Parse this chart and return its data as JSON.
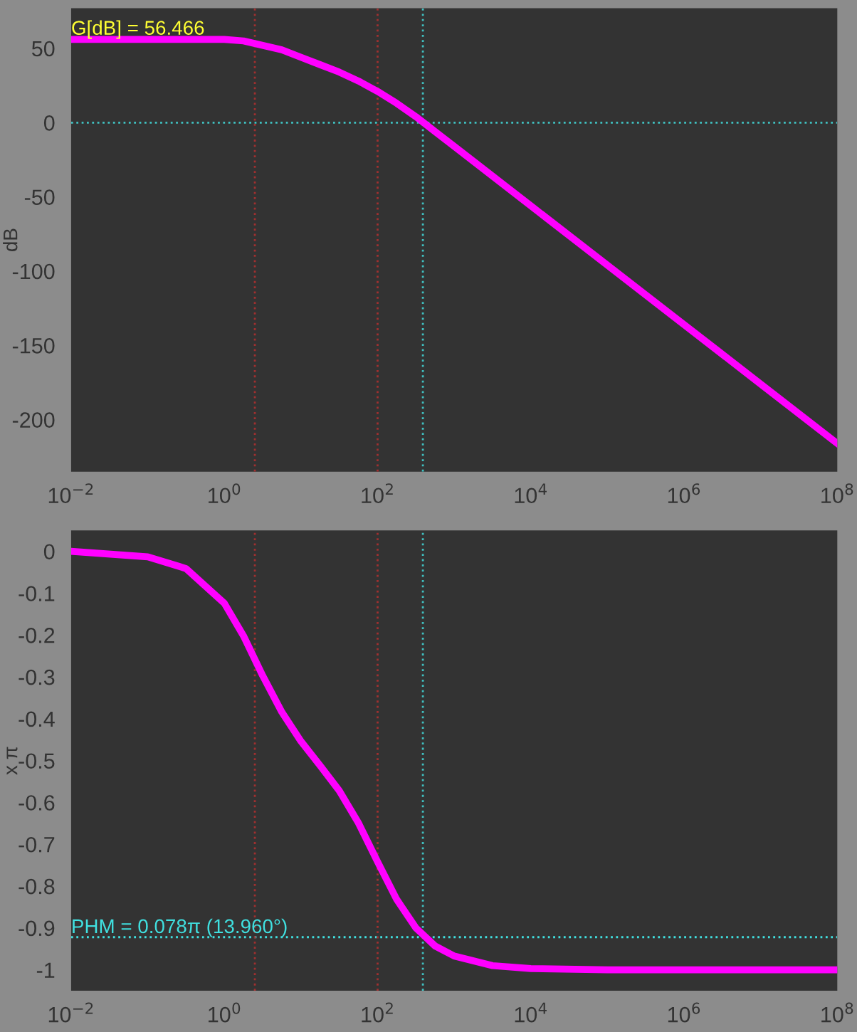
{
  "chart_data": [
    {
      "type": "line",
      "ylabel": "dB",
      "log": "x",
      "grid": false,
      "line_style": "solid",
      "marker": "none",
      "x": [
        0.01,
        0.1,
        0.316,
        1,
        1.778,
        3.162,
        5.623,
        10,
        17.78,
        31.62,
        56.23,
        100,
        177.8,
        316.2,
        562.3,
        1000,
        3162,
        10000,
        100000,
        1000000,
        10000000,
        100000000
      ],
      "series": [
        {
          "color": "#ff00ff",
          "values": [
            56,
            56,
            56,
            56,
            55,
            52,
            49,
            44,
            39,
            34,
            28,
            21,
            13,
            4,
            -6,
            -16,
            -36,
            -56,
            -96,
            -136,
            -176,
            -216
          ]
        }
      ],
      "xlim": [
        0.01,
        100000000
      ],
      "xticks": [
        {
          "value": 0.01,
          "label": "10$^{−2}$"
        },
        {
          "value": 1,
          "label": "10$^{0}$"
        },
        {
          "value": 100,
          "label": "10$^{2}$"
        },
        {
          "value": 10000,
          "label": "10$^{4}$"
        },
        {
          "value": 1000000,
          "label": "10$^{6}$"
        },
        {
          "value": 100000000,
          "label": "10$^{8}$"
        }
      ],
      "ylim": [
        -235,
        77
      ],
      "yticks": [
        50,
        0,
        -50,
        -100,
        -150,
        -200
      ],
      "ref_lines": [
        {
          "axis": "y",
          "value": 0,
          "color": "#40c0c0",
          "line_style": "dotted"
        },
        {
          "axis": "x",
          "value": 2.5,
          "color": "#a03030",
          "line_style": "dotted"
        },
        {
          "axis": "x",
          "value": 100,
          "color": "#a03030",
          "line_style": "dotted"
        },
        {
          "axis": "x",
          "value": 390,
          "color": "#40c0c0",
          "line_style": "dotted"
        }
      ],
      "annotations": [
        {
          "text": "G[dB] = 56.466",
          "x": 0.01,
          "y": 56.466
        }
      ]
    },
    {
      "type": "line",
      "ylabel": "x π",
      "log": "x",
      "grid": false,
      "line_style": "solid",
      "marker": "none",
      "x": [
        0.01,
        0.1,
        0.316,
        1,
        1.778,
        3.162,
        5.623,
        10,
        17.78,
        31.62,
        56.23,
        100,
        177.8,
        316.2,
        562.3,
        1000,
        3162,
        10000,
        100000,
        1000000,
        10000000,
        100000000
      ],
      "series": [
        {
          "color": "#ff00ff",
          "values": [
            0.0,
            -0.013,
            -0.041,
            -0.124,
            -0.202,
            -0.297,
            -0.384,
            -0.454,
            -0.512,
            -0.572,
            -0.649,
            -0.742,
            -0.832,
            -0.9,
            -0.943,
            -0.967,
            -0.99,
            -0.997,
            -1.0,
            -1.0,
            -1.0,
            -1.0
          ]
        }
      ],
      "xlim": [
        0.01,
        100000000
      ],
      "xticks": [
        {
          "value": 0.01,
          "label": "10$^{−2}$"
        },
        {
          "value": 1,
          "label": "10$^{0}$"
        },
        {
          "value": 100,
          "label": "10$^{2}$"
        },
        {
          "value": 10000,
          "label": "10$^{4}$"
        },
        {
          "value": 1000000,
          "label": "10$^{6}$"
        },
        {
          "value": 100000000,
          "label": "10$^{8}$"
        }
      ],
      "ylim": [
        -1.05,
        0.05
      ],
      "yticks": [
        0,
        -0.1,
        -0.2,
        -0.3,
        -0.4,
        -0.5,
        -0.6,
        -0.7,
        -0.8,
        -0.9,
        -1
      ],
      "ref_lines": [
        {
          "axis": "y",
          "value": -0.922,
          "color": "#40e0e0",
          "line_style": "dotted"
        },
        {
          "axis": "x",
          "value": 2.5,
          "color": "#a03030",
          "line_style": "dotted"
        },
        {
          "axis": "x",
          "value": 100,
          "color": "#a03030",
          "line_style": "dotted"
        },
        {
          "axis": "x",
          "value": 390,
          "color": "#40c0c0",
          "line_style": "dotted"
        }
      ],
      "annotations": [
        {
          "text": "PHM = 0.078π (13.960°)",
          "x": 0.01,
          "y": -0.922
        }
      ]
    }
  ]
}
